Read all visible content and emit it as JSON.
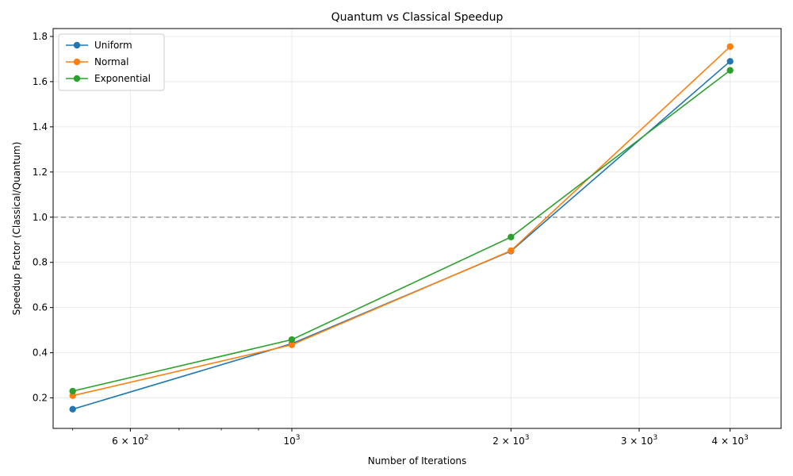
{
  "chart_data": {
    "type": "line",
    "title": "Quantum vs Classical Speedup",
    "xlabel": "Number of Iterations",
    "ylabel": "Speedup Factor (Classical/Quantum)",
    "x_scale": "log",
    "xlim": [
      470,
      4700
    ],
    "ylim": [
      0.065,
      1.835
    ],
    "x": [
      500,
      1000,
      2000,
      4000
    ],
    "x_ticks": [
      {
        "value": 600,
        "mantissa": "6",
        "base": "10",
        "exp": "2"
      },
      {
        "value": 1000,
        "mantissa": "",
        "base": "10",
        "exp": "3"
      },
      {
        "value": 2000,
        "mantissa": "2",
        "base": "10",
        "exp": "3"
      },
      {
        "value": 3000,
        "mantissa": "3",
        "base": "10",
        "exp": "3"
      },
      {
        "value": 4000,
        "mantissa": "4",
        "base": "10",
        "exp": "3"
      }
    ],
    "x_minor_ticks": [
      500,
      700,
      800,
      900
    ],
    "y_ticks": [
      {
        "value": 0.2,
        "label": "0.2"
      },
      {
        "value": 0.4,
        "label": "0.4"
      },
      {
        "value": 0.6,
        "label": "0.6"
      },
      {
        "value": 0.8,
        "label": "0.8"
      },
      {
        "value": 1.0,
        "label": "1.0"
      },
      {
        "value": 1.2,
        "label": "1.2"
      },
      {
        "value": 1.4,
        "label": "1.4"
      },
      {
        "value": 1.6,
        "label": "1.6"
      },
      {
        "value": 1.8,
        "label": "1.8"
      }
    ],
    "reference_line": {
      "y": 1.0,
      "color": "#999999",
      "style": "dashed"
    },
    "grid": true,
    "legend_position": "top-left",
    "series": [
      {
        "name": "Uniform",
        "color": "#1f77b4",
        "values": [
          0.15,
          0.44,
          0.85,
          1.69
        ]
      },
      {
        "name": "Normal",
        "color": "#ff7f0e",
        "values": [
          0.21,
          0.435,
          0.852,
          1.755
        ]
      },
      {
        "name": "Exponential",
        "color": "#2ca02c",
        "values": [
          0.23,
          0.458,
          0.912,
          1.65
        ]
      }
    ]
  }
}
